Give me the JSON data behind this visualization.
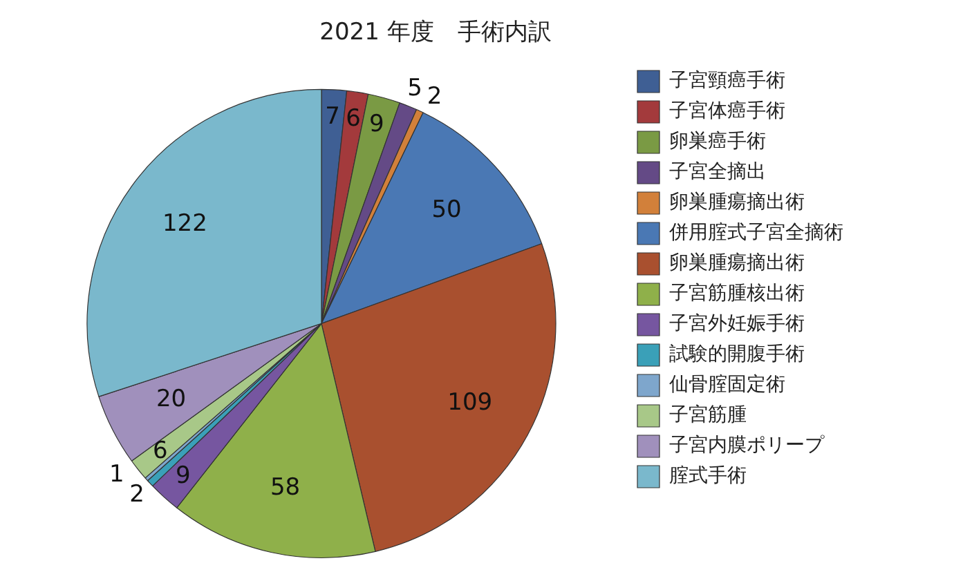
{
  "chart_data": {
    "type": "pie",
    "title": "2021 年度　手術内訳",
    "categories": [
      "子宮頸癌手術",
      "子宮体癌手術",
      "卵巣癌手術",
      "子宮全摘出",
      "卵巣腫瘍摘出術",
      "併用腟式子宮全摘術",
      "卵巣腫瘍摘出術",
      "子宮筋腫核出術",
      "子宮外妊娠手術",
      "試験的開腹手術",
      "仙骨腟固定術",
      "子宮筋腫",
      "子宮内膜ポリープ",
      "腟式手術"
    ],
    "values": [
      7,
      6,
      9,
      5,
      2,
      50,
      109,
      58,
      9,
      2,
      1,
      6,
      20,
      122
    ],
    "colors": [
      "#3f5f94",
      "#a33a3c",
      "#7a9a44",
      "#644a86",
      "#d2803a",
      "#4a78b4",
      "#a9502f",
      "#8fb04a",
      "#7656a0",
      "#3aa0b8",
      "#7ea6cc",
      "#a8c888",
      "#a090bc",
      "#7ab8cc"
    ],
    "legend": "right",
    "data_labels": true
  }
}
